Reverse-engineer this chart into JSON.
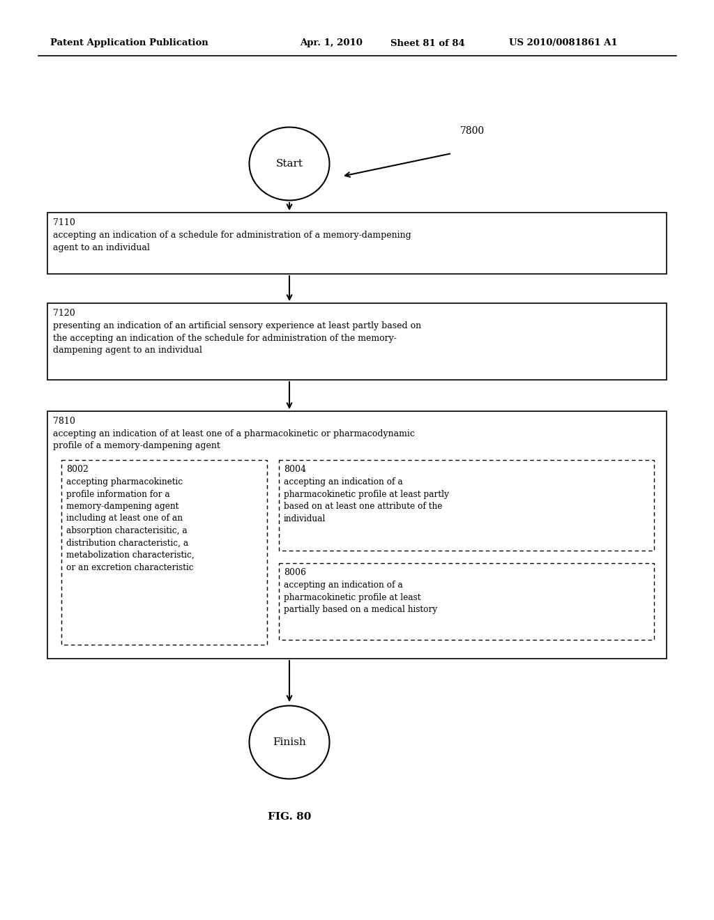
{
  "header_left": "Patent Application Publication",
  "header_center": "Apr. 1, 2010   Sheet 81 of 84",
  "header_right": "US 2010/0081861 A1",
  "fig_label": "FIG. 80",
  "diagram_label": "7800",
  "start_label": "Start",
  "finish_label": "Finish",
  "box7110_id": "7110",
  "box7110_text": "accepting an indication of a schedule for administration of a memory-dampening\nagent to an individual",
  "box7120_id": "7120",
  "box7120_text": "presenting an indication of an artificial sensory experience at least partly based on\nthe accepting an indication of the schedule for administration of the memory-\ndampening agent to an individual",
  "box7810_id": "7810",
  "box7810_text": "accepting an indication of at least one of a pharmacokinetic or pharmacodynamic\nprofile of a memory-dampening agent",
  "box8002_id": "8002",
  "box8002_text": "accepting pharmacokinetic\nprofile information for a\nmemory-dampening agent\nincluding at least one of an\nabsorption characterisitic, a\ndistribution characteristic, a\nmetabolization characteristic,\nor an excretion characteristic",
  "box8004_id": "8004",
  "box8004_text": "accepting an indication of a\npharmacokinetic profile at least partly\nbased on at least one attribute of the\nindividual",
  "box8006_id": "8006",
  "box8006_text": "accepting an indication of a\npharmacokinetic profile at least\npartially based on a medical history",
  "bg_color": "#ffffff",
  "text_color": "#000000",
  "box_edge_color": "#000000",
  "dashed_edge_color": "#000000"
}
